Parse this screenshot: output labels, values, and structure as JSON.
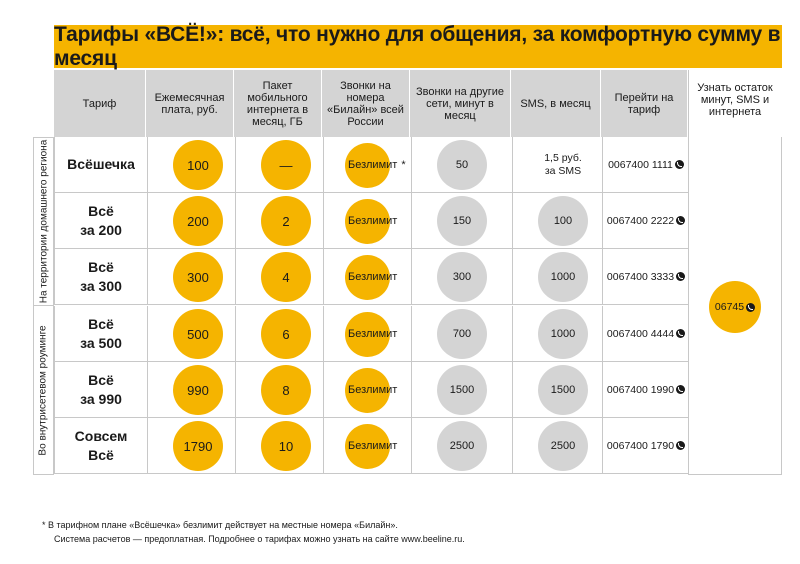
{
  "title": "Тарифы «ВСЁ!»: всё, что нужно для общения, за комфортную сумму в месяц",
  "headers": {
    "tariff": "Тариф",
    "fee": "Ежемесячная плата, руб.",
    "internet": "Пакет мобильного интернета в месяц, ГБ",
    "calls_beeline": "Звонки на номера «Билайн» всей России",
    "calls_other": "Звонки на другие сети, минут в месяц",
    "sms": "SMS, в месяц",
    "go_to": "Перейти на тариф",
    "check": "Узнать остаток минут, SMS и интернета"
  },
  "side_labels": {
    "home_region": "На территории домашнего региона",
    "roaming": "Во внутрисетевом роуминге"
  },
  "rows": [
    {
      "name_l1": "Всёшечка",
      "name_l2": "",
      "fee": "100",
      "internet": "—",
      "calls_beeline": "Безлимит",
      "asterisk": "*",
      "calls_other": "50",
      "sms": "",
      "sms_text_l1": "1,5 руб.",
      "sms_text_l2": "за SMS",
      "code": "0067400 1111"
    },
    {
      "name_l1": "Всё",
      "name_l2": "за 200",
      "fee": "200",
      "internet": "2",
      "calls_beeline": "Безлимит",
      "asterisk": "",
      "calls_other": "150",
      "sms": "100",
      "sms_text_l1": "",
      "sms_text_l2": "",
      "code": "0067400 2222"
    },
    {
      "name_l1": "Всё",
      "name_l2": "за 300",
      "fee": "300",
      "internet": "4",
      "calls_beeline": "Безлимит",
      "asterisk": "",
      "calls_other": "300",
      "sms": "1000",
      "sms_text_l1": "",
      "sms_text_l2": "",
      "code": "0067400 3333"
    },
    {
      "name_l1": "Всё",
      "name_l2": "за 500",
      "fee": "500",
      "internet": "6",
      "calls_beeline": "Безлимит",
      "asterisk": "",
      "calls_other": "700",
      "sms": "1000",
      "sms_text_l1": "",
      "sms_text_l2": "",
      "code": "0067400 4444"
    },
    {
      "name_l1": "Всё",
      "name_l2": "за 990",
      "fee": "990",
      "internet": "8",
      "calls_beeline": "Безлимит",
      "asterisk": "",
      "calls_other": "1500",
      "sms": "1500",
      "sms_text_l1": "",
      "sms_text_l2": "",
      "code": "0067400 1990"
    },
    {
      "name_l1": "Совсем",
      "name_l2": "Всё",
      "fee": "1790",
      "internet": "10",
      "calls_beeline": "Безлимит",
      "asterisk": "",
      "calls_other": "2500",
      "sms": "2500",
      "sms_text_l1": "",
      "sms_text_l2": "",
      "code": "0067400 1790"
    }
  ],
  "check_code": "06745",
  "footnote": {
    "line1": "* В тарифном плане «Всёшечка» безлимит действует на местные номера «Билайн».",
    "line2": "Система расчетов — предоплатная. Подробнее о тарифах можно узнать на сайте www.beeline.ru."
  },
  "colors": {
    "accent": "#f5b400",
    "header_gray": "#d4d4d4",
    "circle_gray": "#d4d4d4"
  },
  "icons": {
    "phone": "phone-icon"
  }
}
